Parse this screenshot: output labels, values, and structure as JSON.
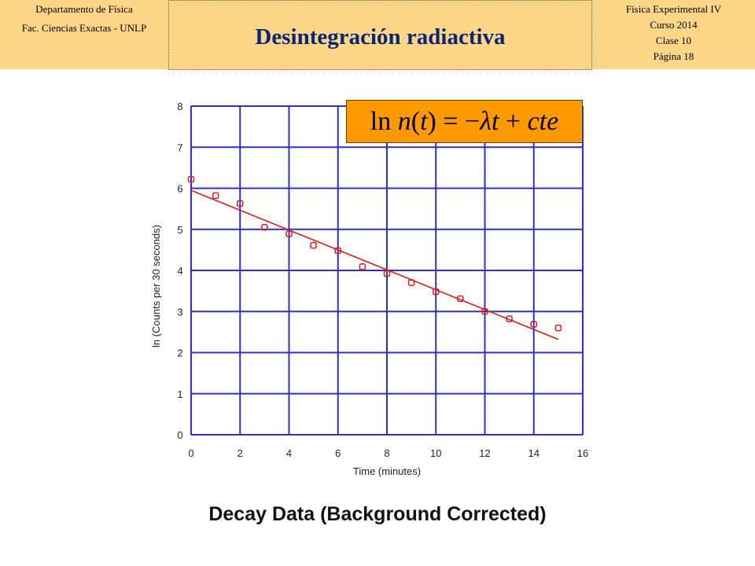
{
  "header": {
    "left_line1": "Departamento de Física",
    "left_line2": "Fac. Ciencias Exactas - UNLP",
    "title": "Desintegración radiactiva",
    "right_line1": "Física Experimental IV",
    "right_line2": "Curso 2014",
    "right_line3": "Clase 10",
    "right_line4": "Página 18"
  },
  "equation": {
    "ln": "ln",
    "n": "n",
    "open_paren": "(",
    "t1": "t",
    "close_paren": ")",
    "equals": " = −",
    "lambda": "λ",
    "t2": "t",
    "plus": " + ",
    "cte": "cte"
  },
  "caption": "Decay Data (Background Corrected)",
  "chart_data": {
    "type": "scatter",
    "xlabel": "Time (minutes)",
    "ylabel": "ln (Counts per 30 seconds)",
    "xlim": [
      0,
      16
    ],
    "ylim": [
      0,
      8
    ],
    "xticks": [
      0,
      2,
      4,
      6,
      8,
      10,
      12,
      14,
      16
    ],
    "yticks": [
      0,
      1,
      2,
      3,
      4,
      5,
      6,
      7,
      8
    ],
    "grid": true,
    "series": [
      {
        "x": [
          0,
          1,
          2,
          3,
          4,
          5,
          6,
          7,
          8,
          9,
          10,
          11,
          12,
          13,
          14,
          15
        ],
        "y": [
          6.22,
          5.82,
          5.63,
          5.05,
          4.89,
          4.61,
          4.48,
          4.09,
          3.92,
          3.7,
          3.48,
          3.31,
          3.0,
          2.82,
          2.69,
          2.6
        ]
      }
    ],
    "fit_line": {
      "x": [
        0,
        15
      ],
      "y": [
        5.95,
        2.32
      ]
    },
    "colors": {
      "grid": "#2f30cc",
      "data": "#d81e1e",
      "axis_text": "#222222"
    }
  }
}
